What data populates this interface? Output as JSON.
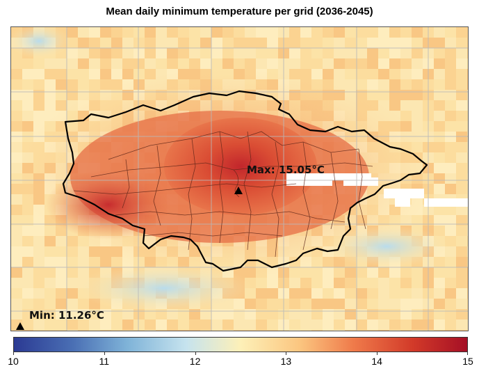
{
  "title": "Mean daily minimum temperature per grid (2036-2045)",
  "annotations": {
    "max_label": "Max: 15.05°C",
    "min_label": "Min: 11.26°C",
    "marker_icon": "triangle-marker-icon"
  },
  "colorbar": {
    "min": 10,
    "max": 15,
    "ticks": [
      "10",
      "11",
      "12",
      "13",
      "14",
      "15"
    ],
    "colormap": [
      "#2b3a93",
      "#4a6fb4",
      "#7fb3d8",
      "#c6e3ee",
      "#fdf0b8",
      "#fbc680",
      "#ef7a4a",
      "#d23a29",
      "#a50f25"
    ]
  },
  "colors": {
    "boundary": "#000000",
    "grid": "#b9b9b9",
    "missing": "#ffffff"
  }
}
